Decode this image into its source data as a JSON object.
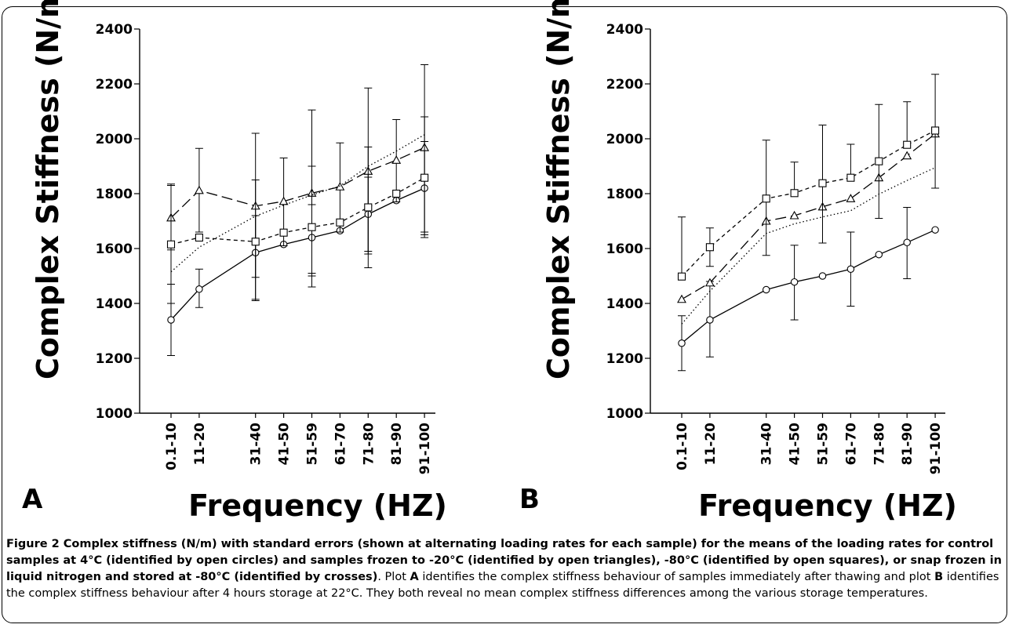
{
  "caption": {
    "heading": "Figure 2 Complex stiffness (N/m) with standard errors (shown at alternating loading rates for each sample) for the means of the loading rates for control samples at 4°C (identified by open circles) and samples frozen to -20°C (identified by open triangles), -80°C (identified by open squares), or snap frozen in liquid nitrogen and stored at -80°C (identified by crosses)",
    "text_1": ". Plot ",
    "letter_a": "A",
    "text_2": " identifies the complex stiffness behaviour of samples immediately after thawing and plot ",
    "letter_b": "B",
    "text_3": " identifies the complex stiffness behaviour after 4 hours storage at 22°C. They both reveal no mean complex stiffness differences among the various storage temperatures."
  },
  "chart_data": [
    {
      "panel": "A",
      "type": "line",
      "ylabel": "Complex Stiffness (N/m)",
      "xlabel": "Frequency (HZ)",
      "ylim": [
        1000,
        2400
      ],
      "yticks": [
        1000,
        1200,
        1400,
        1600,
        1800,
        2000,
        2200,
        2400
      ],
      "categories": [
        "0.1-10",
        "11-20",
        "31-40",
        "41-50",
        "51-59",
        "61-70",
        "71-80",
        "81-90",
        "91-100"
      ],
      "x": [
        5,
        15,
        35,
        45,
        55,
        65,
        75,
        85,
        95
      ],
      "series": [
        {
          "marker": "circle",
          "dash": "solid",
          "values": [
            1340,
            1452,
            1585,
            1615,
            1640,
            1665,
            1725,
            1775,
            1820
          ],
          "err_low": [
            1210,
            1385,
            1415,
            null,
            1510,
            null,
            1590,
            null,
            1650
          ],
          "err_high": [
            1470,
            1525,
            1720,
            null,
            1760,
            null,
            1860,
            null,
            1990
          ]
        },
        {
          "marker": "triangle",
          "dash": "longdash",
          "values": [
            1712,
            1812,
            1755,
            1772,
            1802,
            1825,
            1882,
            1922,
            1968
          ],
          "err_low": [
            1595,
            1660,
            1495,
            1610,
            1500,
            1660,
            1580,
            1770,
            1660
          ],
          "err_high": [
            1835,
            1965,
            2020,
            1930,
            2105,
            1985,
            2185,
            2070,
            2270
          ]
        },
        {
          "marker": "square",
          "dash": "shortdash",
          "values": [
            1615,
            1640,
            1625,
            1658,
            1678,
            1695,
            1750,
            1800,
            1858
          ],
          "err_low": [
            1400,
            null,
            1410,
            null,
            1460,
            null,
            1530,
            null,
            1640
          ],
          "err_high": [
            1830,
            null,
            1850,
            null,
            1900,
            null,
            1970,
            null,
            2080
          ]
        },
        {
          "marker": "none",
          "dash": "dotted",
          "values": [
            1515,
            1605,
            1718,
            1758,
            1795,
            1828,
            1900,
            1955,
            2015
          ],
          "err_low": [
            null,
            null,
            null,
            null,
            null,
            null,
            null,
            null,
            null
          ],
          "err_high": [
            null,
            null,
            null,
            null,
            null,
            null,
            null,
            null,
            null
          ]
        }
      ]
    },
    {
      "panel": "B",
      "type": "line",
      "ylabel": "Complex Stiffness (N/m)",
      "xlabel": "Frequency (HZ)",
      "ylim": [
        1000,
        2400
      ],
      "yticks": [
        1000,
        1200,
        1400,
        1600,
        1800,
        2000,
        2200,
        2400
      ],
      "categories": [
        "0.1-10",
        "11-20",
        "31-40",
        "41-50",
        "51-59",
        "61-70",
        "71-80",
        "81-90",
        "91-100"
      ],
      "x": [
        5,
        15,
        35,
        45,
        55,
        65,
        75,
        85,
        95
      ],
      "series": [
        {
          "marker": "circle",
          "dash": "solid",
          "values": [
            1255,
            1340,
            1450,
            1478,
            1500,
            1525,
            1578,
            1622,
            1668
          ],
          "err_low": [
            1155,
            1205,
            null,
            1340,
            null,
            1390,
            null,
            1490,
            null
          ],
          "err_high": [
            1355,
            1480,
            null,
            1612,
            null,
            1660,
            null,
            1750,
            null
          ]
        },
        {
          "marker": "triangle",
          "dash": "longdash",
          "values": [
            1415,
            1475,
            1700,
            1720,
            1752,
            1782,
            1858,
            1938,
            2018
          ],
          "err_low": [
            null,
            null,
            null,
            null,
            null,
            null,
            null,
            null,
            null
          ],
          "err_high": [
            null,
            null,
            null,
            null,
            null,
            null,
            null,
            null,
            null
          ]
        },
        {
          "marker": "square",
          "dash": "shortdash",
          "values": [
            1498,
            1605,
            1782,
            1802,
            1838,
            1858,
            1918,
            1978,
            2030
          ],
          "err_low": [
            null,
            1535,
            1575,
            null,
            1620,
            null,
            1710,
            null,
            1820
          ],
          "err_high": [
            1715,
            1675,
            1995,
            1915,
            2050,
            1980,
            2125,
            2135,
            2235
          ]
        },
        {
          "marker": "none",
          "dash": "dotted",
          "values": [
            1325,
            1445,
            1655,
            1690,
            1715,
            1738,
            1798,
            1848,
            1895
          ],
          "err_low": [
            null,
            null,
            null,
            null,
            null,
            null,
            null,
            null,
            null
          ],
          "err_high": [
            null,
            null,
            null,
            null,
            null,
            null,
            null,
            null,
            null
          ]
        }
      ]
    }
  ]
}
